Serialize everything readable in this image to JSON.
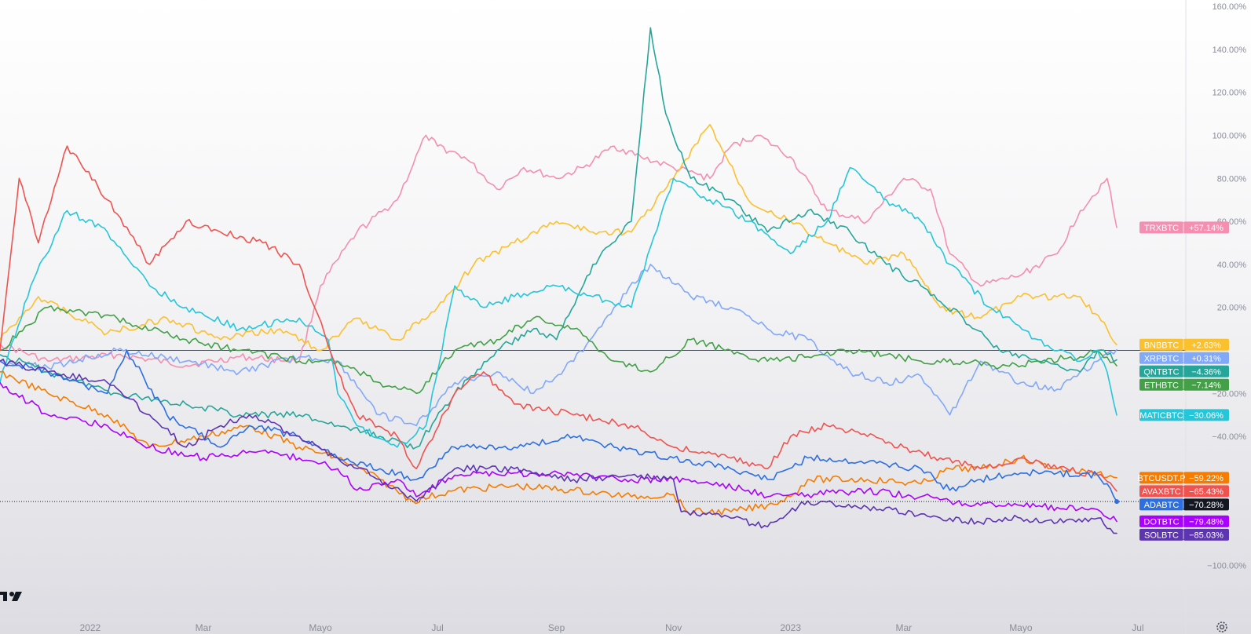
{
  "chart_data": {
    "type": "line",
    "yunit": "%",
    "ylim": [
      -110,
      160
    ],
    "yticks": [
      "160.00%",
      "140.00%",
      "120.00%",
      "100.00%",
      "80.00%",
      "60.00%",
      "40.00%",
      "20.00%",
      "−20.00%",
      "−40.00%",
      "−100.00%"
    ],
    "ytick_values": [
      160,
      140,
      120,
      100,
      80,
      60,
      40,
      20,
      -20,
      -40,
      -100
    ],
    "xlim": [
      "2021-11-15",
      "2023-07-26"
    ],
    "xticks": [
      {
        "label": "2022",
        "date": "2022-01-01"
      },
      {
        "label": "Mar",
        "date": "2022-03-01"
      },
      {
        "label": "Mayo",
        "date": "2022-05-01"
      },
      {
        "label": "Jul",
        "date": "2022-07-01"
      },
      {
        "label": "Sep",
        "date": "2022-09-01"
      },
      {
        "label": "Nov",
        "date": "2022-11-01"
      },
      {
        "label": "2023",
        "date": "2023-01-01"
      },
      {
        "label": "Mar",
        "date": "2023-03-01"
      },
      {
        "label": "Mayo",
        "date": "2023-05-01"
      },
      {
        "label": "Jul",
        "date": "2023-07-01"
      }
    ],
    "baseline": 0,
    "legend": "right-edge tags",
    "series": [
      {
        "name": "TRXBTC",
        "last": "+57.14%",
        "color": "#f48fb1",
        "dates": [
          "2021-11-15",
          "2021-12-10",
          "2022-01-15",
          "2022-02-20",
          "2022-03-20",
          "2022-04-20",
          "2022-05-01",
          "2022-05-20",
          "2022-06-10",
          "2022-06-25",
          "2022-07-01",
          "2022-07-15",
          "2022-08-01",
          "2022-08-15",
          "2022-09-01",
          "2022-09-15",
          "2022-10-01",
          "2022-10-15",
          "2022-11-01",
          "2022-11-20",
          "2022-12-01",
          "2022-12-15",
          "2023-01-01",
          "2023-01-20",
          "2023-02-10",
          "2023-03-01",
          "2023-03-15",
          "2023-03-25",
          "2023-04-10",
          "2023-05-01",
          "2023-05-20",
          "2023-06-01",
          "2023-06-15",
          "2023-06-20"
        ],
        "values": [
          3,
          -5,
          -2,
          -7,
          -3,
          -5,
          30,
          55,
          70,
          100,
          95,
          90,
          75,
          85,
          80,
          85,
          95,
          90,
          85,
          80,
          95,
          100,
          90,
          65,
          60,
          80,
          75,
          45,
          30,
          35,
          45,
          65,
          80,
          57.14
        ]
      },
      {
        "name": "BNBBTC",
        "last": "+2.63%",
        "color": "#fbc02d",
        "dates": [
          "2021-11-15",
          "2021-12-05",
          "2022-01-10",
          "2022-02-10",
          "2022-03-10",
          "2022-04-10",
          "2022-05-01",
          "2022-05-20",
          "2022-06-10",
          "2022-07-01",
          "2022-07-20",
          "2022-08-10",
          "2022-09-01",
          "2022-09-20",
          "2022-10-10",
          "2022-11-01",
          "2022-11-20",
          "2022-12-10",
          "2023-01-01",
          "2023-01-20",
          "2023-02-10",
          "2023-03-01",
          "2023-03-20",
          "2023-04-10",
          "2023-05-01",
          "2023-05-20",
          "2023-06-01",
          "2023-06-15",
          "2023-06-20"
        ],
        "values": [
          5,
          25,
          8,
          15,
          5,
          10,
          0,
          15,
          5,
          20,
          40,
          50,
          60,
          55,
          55,
          80,
          105,
          70,
          60,
          50,
          40,
          45,
          20,
          15,
          25,
          25,
          25,
          10,
          2.63
        ]
      },
      {
        "name": "XRPBTC",
        "last": "+0.31%",
        "color": "#82a8f8",
        "dates": [
          "2021-11-15",
          "2021-12-10",
          "2022-01-15",
          "2022-02-20",
          "2022-03-20",
          "2022-04-20",
          "2022-05-10",
          "2022-06-01",
          "2022-06-20",
          "2022-07-10",
          "2022-08-01",
          "2022-08-20",
          "2022-09-10",
          "2022-10-01",
          "2022-10-20",
          "2022-11-10",
          "2022-12-01",
          "2022-12-20",
          "2023-01-10",
          "2023-02-01",
          "2023-02-20",
          "2023-03-10",
          "2023-03-25",
          "2023-04-10",
          "2023-05-01",
          "2023-05-20",
          "2023-06-01",
          "2023-06-10",
          "2023-06-20"
        ],
        "values": [
          -5,
          -8,
          0,
          -5,
          -10,
          -3,
          -5,
          -30,
          -35,
          -15,
          -10,
          -20,
          -5,
          20,
          40,
          25,
          20,
          10,
          5,
          -10,
          -15,
          -12,
          -30,
          -5,
          -15,
          -18,
          -10,
          -5,
          0.31
        ]
      },
      {
        "name": "QNTBTC",
        "last": "−4.36%",
        "color": "#26a69a",
        "dates": [
          "2021-11-15",
          "2021-12-10",
          "2022-01-15",
          "2022-02-20",
          "2022-03-20",
          "2022-04-20",
          "2022-05-10",
          "2022-06-01",
          "2022-06-20",
          "2022-07-10",
          "2022-08-01",
          "2022-08-20",
          "2022-09-01",
          "2022-09-20",
          "2022-10-10",
          "2022-10-20",
          "2022-10-28",
          "2022-11-10",
          "2022-12-01",
          "2022-12-20",
          "2023-01-10",
          "2023-02-01",
          "2023-02-20",
          "2023-03-10",
          "2023-04-01",
          "2023-04-20",
          "2023-05-10",
          "2023-06-01",
          "2023-06-10",
          "2023-06-20"
        ],
        "values": [
          -2,
          -10,
          -20,
          -25,
          -30,
          -30,
          -35,
          -40,
          -45,
          -20,
          0,
          10,
          5,
          40,
          60,
          150,
          110,
          80,
          70,
          55,
          65,
          55,
          40,
          30,
          15,
          0,
          -5,
          -10,
          0,
          -4.36
        ]
      },
      {
        "name": "ETHBTC",
        "last": "−7.14%",
        "color": "#43a047",
        "dates": [
          "2021-11-15",
          "2021-12-10",
          "2022-01-15",
          "2022-02-20",
          "2022-03-20",
          "2022-04-20",
          "2022-05-10",
          "2022-06-01",
          "2022-06-20",
          "2022-07-10",
          "2022-08-01",
          "2022-08-20",
          "2022-09-10",
          "2022-10-01",
          "2022-10-20",
          "2022-11-10",
          "2022-12-01",
          "2022-12-20",
          "2023-01-10",
          "2023-02-01",
          "2023-02-20",
          "2023-03-10",
          "2023-04-01",
          "2023-04-20",
          "2023-05-10",
          "2023-06-01",
          "2023-06-10",
          "2023-06-20"
        ],
        "values": [
          0,
          20,
          15,
          5,
          0,
          -5,
          -5,
          -15,
          -20,
          0,
          5,
          15,
          10,
          -5,
          -10,
          5,
          0,
          -5,
          -3,
          0,
          -2,
          -5,
          -5,
          -8,
          -5,
          -3,
          0,
          -7.14
        ]
      },
      {
        "name": "MATICBTC",
        "last": "−30.06%",
        "color": "#26c6da",
        "dates": [
          "2021-11-15",
          "2021-12-01",
          "2021-12-20",
          "2022-01-10",
          "2022-02-01",
          "2022-02-20",
          "2022-03-20",
          "2022-04-20",
          "2022-05-05",
          "2022-05-10",
          "2022-05-20",
          "2022-06-10",
          "2022-06-25",
          "2022-07-10",
          "2022-07-25",
          "2022-08-10",
          "2022-09-01",
          "2022-09-20",
          "2022-10-10",
          "2022-11-01",
          "2022-11-20",
          "2022-12-10",
          "2023-01-01",
          "2023-01-20",
          "2023-02-01",
          "2023-02-20",
          "2023-03-10",
          "2023-03-25",
          "2023-04-15",
          "2023-05-10",
          "2023-06-01",
          "2023-06-10",
          "2023-06-15",
          "2023-06-20"
        ],
        "values": [
          -15,
          30,
          65,
          55,
          30,
          20,
          10,
          15,
          5,
          -20,
          -35,
          -45,
          -35,
          30,
          20,
          25,
          30,
          25,
          20,
          80,
          70,
          60,
          45,
          60,
          85,
          70,
          60,
          40,
          20,
          5,
          -5,
          0,
          -10,
          -30.06
        ]
      },
      {
        "name": "BTCUSDT.P",
        "last": "−59.22%",
        "color": "#f57c00",
        "dates": [
          "2021-11-15",
          "2021-12-10",
          "2022-01-10",
          "2022-02-01",
          "2022-03-01",
          "2022-03-25",
          "2022-04-20",
          "2022-05-10",
          "2022-06-01",
          "2022-06-18",
          "2022-07-10",
          "2022-08-10",
          "2022-09-10",
          "2022-10-10",
          "2022-11-01",
          "2022-11-08",
          "2022-12-01",
          "2022-12-20",
          "2023-01-01",
          "2023-01-10",
          "2023-02-10",
          "2023-03-10",
          "2023-03-25",
          "2023-04-10",
          "2023-05-01",
          "2023-05-20",
          "2023-06-10",
          "2023-06-20"
        ],
        "values": [
          -10,
          -20,
          -30,
          -45,
          -40,
          -35,
          -45,
          -50,
          -60,
          -70,
          -65,
          -63,
          -65,
          -68,
          -67,
          -75,
          -75,
          -72,
          -68,
          -60,
          -60,
          -62,
          -55,
          -55,
          -50,
          -55,
          -57,
          -59.22
        ]
      },
      {
        "name": "AVAXBTC",
        "last": "−65.43%",
        "color": "#ef5350",
        "dates": [
          "2021-11-15",
          "2021-11-25",
          "2021-12-05",
          "2021-12-20",
          "2022-01-10",
          "2022-02-01",
          "2022-02-20",
          "2022-03-10",
          "2022-04-01",
          "2022-04-20",
          "2022-04-28",
          "2022-05-10",
          "2022-05-20",
          "2022-06-10",
          "2022-06-20",
          "2022-07-10",
          "2022-07-25",
          "2022-08-10",
          "2022-09-10",
          "2022-10-10",
          "2022-11-01",
          "2022-12-01",
          "2022-12-20",
          "2023-01-01",
          "2023-01-20",
          "2023-02-10",
          "2023-03-01",
          "2023-03-20",
          "2023-04-10",
          "2023-05-01",
          "2023-05-20",
          "2023-06-10",
          "2023-06-20"
        ],
        "values": [
          0,
          80,
          50,
          95,
          70,
          40,
          60,
          55,
          50,
          40,
          20,
          -10,
          -30,
          -40,
          -55,
          -20,
          -10,
          -25,
          -30,
          -35,
          -45,
          -50,
          -55,
          -40,
          -35,
          -40,
          -45,
          -50,
          -55,
          -50,
          -55,
          -58,
          -65.43
        ]
      },
      {
        "name": "ADABTC",
        "last": "−70.28%",
        "color": "#2d6fe0",
        "dates": [
          "2021-11-15",
          "2021-12-10",
          "2022-01-10",
          "2022-01-20",
          "2022-02-10",
          "2022-03-10",
          "2022-03-25",
          "2022-04-20",
          "2022-05-10",
          "2022-06-01",
          "2022-06-20",
          "2022-07-10",
          "2022-08-10",
          "2022-09-10",
          "2022-10-01",
          "2022-11-01",
          "2022-12-01",
          "2022-12-20",
          "2023-01-10",
          "2023-02-10",
          "2023-03-10",
          "2023-03-25",
          "2023-04-10",
          "2023-05-01",
          "2023-05-20",
          "2023-06-10",
          "2023-06-15",
          "2023-06-20"
        ],
        "values": [
          -5,
          -10,
          -20,
          0,
          -30,
          -45,
          -35,
          -40,
          -50,
          -55,
          -60,
          -45,
          -45,
          -40,
          -45,
          -50,
          -55,
          -60,
          -50,
          -52,
          -55,
          -65,
          -60,
          -57,
          -57,
          -58,
          -62,
          -70.28
        ]
      },
      {
        "name": "DOTBTC",
        "last": "−79.48%",
        "color": "#aa00ff",
        "dates": [
          "2021-11-15",
          "2021-12-10",
          "2022-01-10",
          "2022-02-01",
          "2022-03-01",
          "2022-03-25",
          "2022-04-20",
          "2022-05-10",
          "2022-05-20",
          "2022-06-10",
          "2022-06-20",
          "2022-07-10",
          "2022-08-10",
          "2022-09-10",
          "2022-10-10",
          "2022-11-01",
          "2022-11-20",
          "2022-12-10",
          "2022-12-20",
          "2023-01-10",
          "2023-02-10",
          "2023-03-10",
          "2023-03-25",
          "2023-04-10",
          "2023-05-01",
          "2023-05-20",
          "2023-06-10",
          "2023-06-20"
        ],
        "values": [
          -15,
          -30,
          -35,
          -45,
          -50,
          -47,
          -50,
          -55,
          -65,
          -60,
          -68,
          -58,
          -57,
          -58,
          -60,
          -60,
          -62,
          -65,
          -68,
          -67,
          -65,
          -68,
          -70,
          -72,
          -72,
          -73,
          -74,
          -79.48
        ]
      },
      {
        "name": "SOLBTC",
        "last": "−85.03%",
        "color": "#5e35b1",
        "dates": [
          "2021-11-15",
          "2021-12-10",
          "2022-01-10",
          "2022-02-01",
          "2022-02-20",
          "2022-03-10",
          "2022-03-25",
          "2022-04-20",
          "2022-05-10",
          "2022-06-01",
          "2022-06-20",
          "2022-07-10",
          "2022-08-10",
          "2022-09-10",
          "2022-10-10",
          "2022-11-01",
          "2022-11-05",
          "2022-12-01",
          "2022-12-20",
          "2023-01-10",
          "2023-02-10",
          "2023-03-10",
          "2023-03-25",
          "2023-04-10",
          "2023-05-01",
          "2023-05-20",
          "2023-06-10",
          "2023-06-20"
        ],
        "values": [
          -5,
          -10,
          -15,
          -30,
          -45,
          -35,
          -30,
          -40,
          -50,
          -60,
          -70,
          -55,
          -55,
          -60,
          -58,
          -60,
          -75,
          -78,
          -82,
          -70,
          -73,
          -76,
          -78,
          -80,
          -78,
          -80,
          -78,
          -85.03
        ]
      }
    ]
  }
}
